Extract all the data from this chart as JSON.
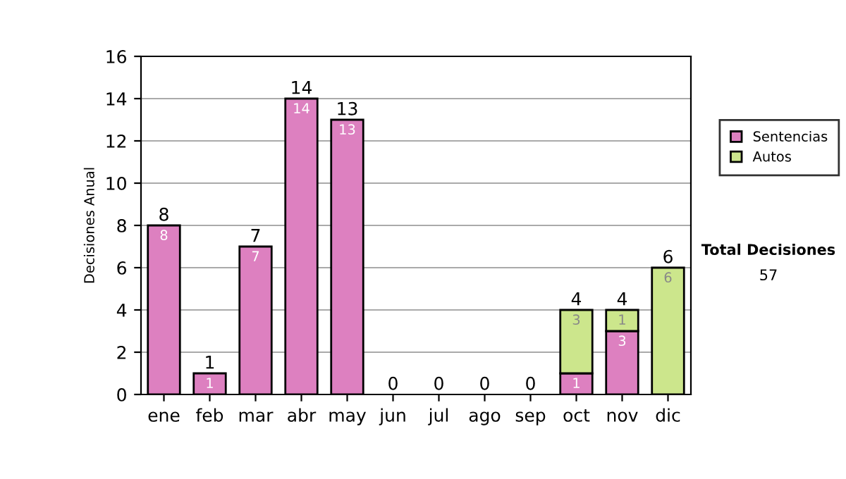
{
  "chart_data": {
    "type": "bar",
    "stacked": true,
    "ylabel": "Decisiones Anual",
    "categories": [
      "ene",
      "feb",
      "mar",
      "abr",
      "may",
      "jun",
      "jul",
      "ago",
      "sep",
      "oct",
      "nov",
      "dic"
    ],
    "series": [
      {
        "name": "Sentencias",
        "color": "#dd80c0",
        "values": [
          8,
          1,
          7,
          14,
          13,
          0,
          0,
          0,
          0,
          1,
          3,
          0
        ],
        "value_labels": [
          "8",
          "1",
          "7",
          "14",
          "13",
          null,
          null,
          null,
          null,
          "1",
          "3",
          null
        ]
      },
      {
        "name": "Autos",
        "color": "#cce68c",
        "values": [
          0,
          0,
          0,
          0,
          0,
          0,
          0,
          0,
          0,
          3,
          1,
          6
        ],
        "value_labels": [
          null,
          null,
          null,
          null,
          null,
          null,
          null,
          null,
          null,
          "3",
          "1",
          "6"
        ]
      }
    ],
    "totals": [
      "8",
      "1",
      "7",
      "14",
      "13",
      "0",
      "0",
      "0",
      "0",
      "4",
      "4",
      "6"
    ],
    "ylim": [
      0,
      16
    ],
    "yticks": [
      0,
      2,
      4,
      6,
      8,
      10,
      12,
      14,
      16
    ],
    "grid": "y",
    "legend": "right",
    "annotations": [
      "Total Decisiones",
      "57"
    ]
  }
}
